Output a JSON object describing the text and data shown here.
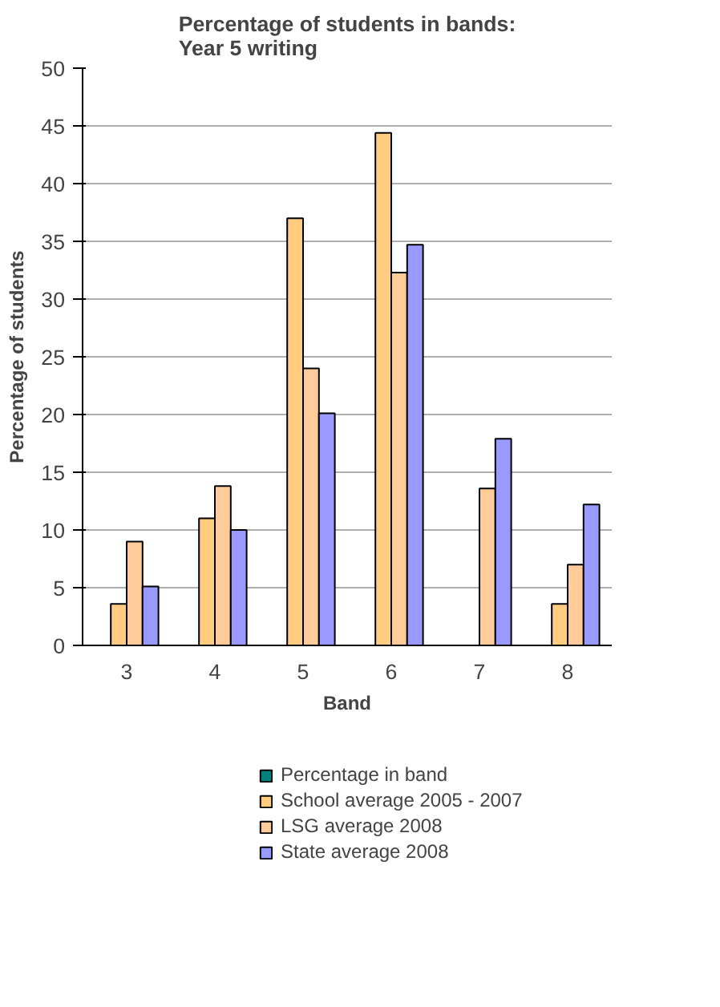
{
  "chart_data": {
    "type": "bar",
    "title": "Percentage of students in bands:\nYear 5 writing",
    "xlabel": "Band",
    "ylabel": "Percentage of students",
    "categories": [
      "3",
      "4",
      "5",
      "6",
      "7",
      "8"
    ],
    "series": [
      {
        "name": "Percentage in band",
        "color": "#008080",
        "values": [
          null,
          null,
          null,
          null,
          null,
          null
        ]
      },
      {
        "name": "School average 2005 - 2007",
        "color": "#ffcc80",
        "values": [
          3.6,
          11.0,
          37.0,
          44.4,
          null,
          3.6
        ]
      },
      {
        "name": "LSG average 2008",
        "color": "#ffcc99",
        "values": [
          9.0,
          13.8,
          24.0,
          32.3,
          13.6,
          7.0
        ]
      },
      {
        "name": "State average 2008",
        "color": "#9999ff",
        "values": [
          5.1,
          10.0,
          20.1,
          34.7,
          17.9,
          12.2
        ]
      }
    ],
    "ylim": [
      0,
      50
    ],
    "yticks": [
      0,
      5,
      10,
      15,
      20,
      25,
      30,
      35,
      40,
      45,
      50
    ],
    "grid": "y",
    "legend": "bottom"
  }
}
